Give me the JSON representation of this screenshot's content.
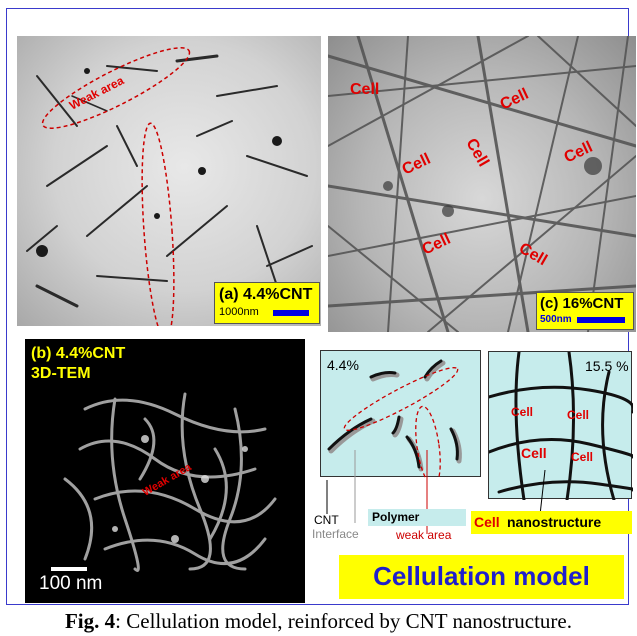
{
  "panel_a": {
    "label_prefix": "(a)",
    "label_value": "4.4%CNT",
    "scale_text": "1000nm",
    "weak_area_text": "Weak area"
  },
  "panel_c": {
    "label_prefix": "(c)",
    "label_value": "16%CNT",
    "scale_text": "500nm",
    "cell_labels": [
      "Cell",
      "Cell",
      "Cell",
      "Cell",
      "Cell",
      "Cell",
      "Cell"
    ]
  },
  "panel_b": {
    "label_line1": "(b) 4.4%CNT",
    "label_line2": "3D-TEM",
    "weak_area_text": "Weak area",
    "scale_text": "100 nm"
  },
  "model": {
    "left_percent": "4.4%",
    "right_percent": "15.5 %",
    "right_cell_labels": [
      "Cell",
      "Cell",
      "Cell",
      "Cell"
    ],
    "cnt_label": "CNT",
    "interface_label": "Interface",
    "polymer_label": "Polymer",
    "weak_area_label": "weak area",
    "cell_word": "Cell",
    "nanostructure_word": "nanostructure",
    "title": "Cellulation model"
  },
  "caption": {
    "fig_label": "Fig. 4",
    "text": ": Cellulation model, reinforced by CNT nanostructure."
  },
  "colors": {
    "label_yellow": "#ffff00",
    "cell_red": "#e00000",
    "model_cyan": "#c6ecec",
    "scale_blue": "#0000e0"
  }
}
